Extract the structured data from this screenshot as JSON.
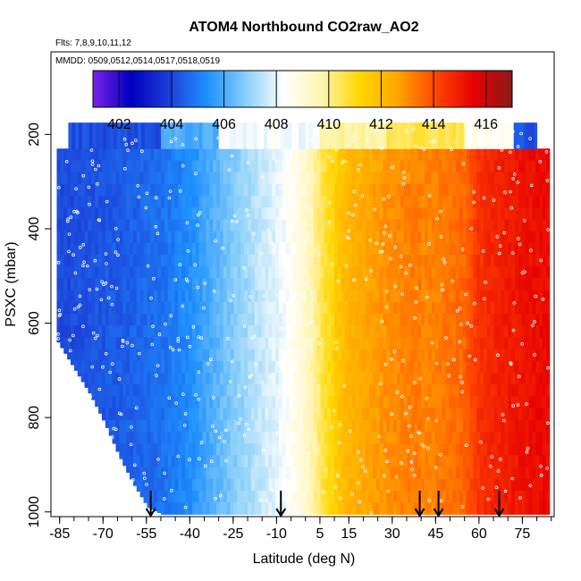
{
  "chart_data": {
    "type": "heatmap",
    "title": "ATOM4 Northbound CO2raw_AO2",
    "annotation_flights": "Flts: 7,8,9,10,11,12",
    "annotation_dates": "MMDD: 0509,0512,0514,0517,0518,0519",
    "xlabel": "Latitude (deg N)",
    "ylabel": "PSXC (mbar)",
    "xlim": [
      -88,
      86
    ],
    "ylim": [
      1010,
      25
    ],
    "y_reversed": true,
    "x_ticks": [
      -85,
      -70,
      -55,
      -40,
      -25,
      -10,
      5,
      15,
      30,
      45,
      60,
      75
    ],
    "x_tick_labels": [
      "-85",
      "-70",
      "-55",
      "-40",
      "-25",
      "-10",
      "5",
      "15",
      "30",
      "45",
      "60",
      "75"
    ],
    "x_minor_step": 5,
    "y_ticks": [
      200,
      400,
      600,
      800,
      1000
    ],
    "y_tick_labels": [
      "200",
      "400",
      "600",
      "800",
      "1000"
    ],
    "colorbar": {
      "min": 401,
      "max": 417,
      "ticks": [
        402,
        404,
        406,
        408,
        410,
        412,
        414,
        416
      ],
      "tick_labels": [
        "402",
        "404",
        "406",
        "408",
        "410",
        "412",
        "414",
        "416"
      ],
      "colors": [
        "#7b22e8",
        "#0000c0",
        "#1c3fd8",
        "#1e90ff",
        "#87cefa",
        "#ffffff",
        "#fff5b0",
        "#ffd700",
        "#ffa500",
        "#ff4500",
        "#e60000",
        "#8b1a1a"
      ]
    },
    "latitude_profile": {
      "lat": [
        -84,
        -70,
        -60,
        -50,
        -40,
        -30,
        -22,
        -15,
        -8,
        -3,
        2,
        7,
        15,
        25,
        35,
        45,
        55,
        60,
        65,
        70,
        80
      ],
      "co2": [
        404.1,
        404.3,
        404.5,
        404.8,
        405.3,
        406.3,
        407.0,
        407.6,
        408.1,
        408.7,
        409.6,
        410.8,
        412.0,
        412.6,
        413.0,
        413.2,
        413.6,
        414.5,
        414.8,
        415.0,
        415.3
      ]
    },
    "surface_pressure_edge": {
      "lat": [
        -86,
        -80,
        -75,
        -70,
        -65,
        -60,
        -55,
        -50
      ],
      "p_max": [
        640,
        700,
        750,
        810,
        880,
        940,
        990,
        1005
      ]
    },
    "upper_tropopause_cells": [
      {
        "lat": [
          -82,
          -50
        ],
        "p_top": 175,
        "co2": 404.2
      },
      {
        "lat": [
          -50,
          -30
        ],
        "p_top": 175,
        "co2": 406.0
      },
      {
        "lat": [
          -30,
          5
        ],
        "p_top": 175,
        "co2": 408.2
      },
      {
        "lat": [
          5,
          28
        ],
        "p_top": 175,
        "co2": 409.8
      },
      {
        "lat": [
          28,
          55
        ],
        "p_top": 175,
        "co2": 410.6
      },
      {
        "lat": [
          55,
          72
        ],
        "p_top": 175,
        "co2": 408.5
      },
      {
        "lat": [
          72,
          80
        ],
        "p_top": 175,
        "co2": 404.3
      }
    ],
    "arrow_latitudes": [
      -53.5,
      -8.5,
      39.5,
      46,
      67
    ]
  }
}
